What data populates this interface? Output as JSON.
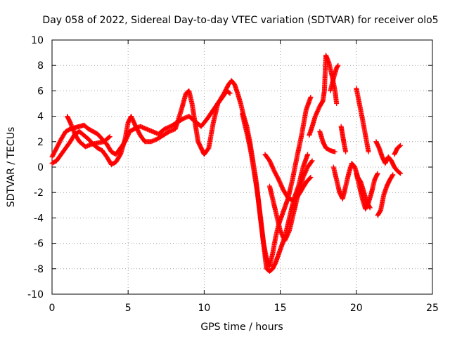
{
  "chart_data": {
    "type": "scatter",
    "title": "Day 058 of 2022, Sidereal Day-to-day VTEC variation (SDTVAR) for receiver olo5",
    "xlabel": "GPS time / hours",
    "ylabel": "SDTVAR / TECUs",
    "xlim": [
      0,
      25
    ],
    "ylim": [
      -10,
      10
    ],
    "xticks": [
      "0",
      "5",
      "10",
      "15",
      "20",
      "25"
    ],
    "yticks": [
      "-10",
      "-8",
      "-6",
      "-4",
      "-2",
      "0",
      "2",
      "4",
      "6",
      "8",
      "10"
    ],
    "xtick_values": [
      0,
      5,
      10,
      15,
      20,
      25
    ],
    "ytick_values": [
      -10,
      -8,
      -6,
      -4,
      -2,
      0,
      2,
      4,
      6,
      8,
      10
    ],
    "grid": true,
    "marker": "plus",
    "color": "#ff0000",
    "series": [
      {
        "points": [
          [
            0.0,
            0.8
          ],
          [
            0.3,
            1.5
          ],
          [
            0.6,
            2.2
          ],
          [
            0.9,
            2.8
          ],
          [
            1.2,
            3.0
          ],
          [
            1.5,
            3.1
          ],
          [
            1.8,
            3.2
          ],
          [
            2.1,
            3.3
          ],
          [
            2.4,
            3.0
          ],
          [
            2.7,
            2.8
          ],
          [
            3.0,
            2.6
          ],
          [
            3.3,
            2.2
          ],
          [
            3.6,
            1.8
          ],
          [
            3.9,
            1.2
          ],
          [
            4.2,
            1.0
          ],
          [
            4.5,
            1.5
          ],
          [
            4.8,
            2.0
          ],
          [
            5.1,
            2.8
          ],
          [
            5.4,
            3.0
          ],
          [
            5.8,
            3.2
          ],
          [
            6.2,
            3.0
          ],
          [
            6.6,
            2.8
          ],
          [
            7.0,
            2.6
          ],
          [
            7.4,
            3.0
          ],
          [
            7.8,
            3.2
          ],
          [
            8.2,
            3.5
          ],
          [
            8.6,
            3.8
          ],
          [
            9.0,
            4.0
          ],
          [
            9.4,
            3.6
          ],
          [
            9.8,
            3.2
          ],
          [
            10.2,
            3.8
          ],
          [
            10.6,
            4.5
          ],
          [
            11.0,
            5.2
          ],
          [
            11.3,
            5.8
          ],
          [
            11.6,
            6.5
          ],
          [
            11.8,
            6.8
          ],
          [
            12.0,
            6.5
          ],
          [
            12.2,
            5.8
          ],
          [
            12.4,
            5.0
          ],
          [
            12.6,
            4.0
          ],
          [
            12.8,
            3.2
          ],
          [
            13.0,
            2.0
          ],
          [
            13.2,
            0.5
          ],
          [
            13.4,
            -1.0
          ],
          [
            13.6,
            -3.0
          ],
          [
            13.8,
            -5.0
          ],
          [
            14.0,
            -7.0
          ],
          [
            14.1,
            -8.0
          ],
          [
            14.3,
            -8.2
          ],
          [
            14.5,
            -8.0
          ],
          [
            14.7,
            -7.5
          ],
          [
            15.0,
            -6.5
          ],
          [
            15.3,
            -5.5
          ],
          [
            15.6,
            -4.0
          ],
          [
            15.9,
            -2.5
          ],
          [
            16.2,
            -1.5
          ],
          [
            16.5,
            0.0
          ],
          [
            16.8,
            1.0
          ]
        ]
      },
      {
        "points": [
          [
            0.0,
            0.3
          ],
          [
            0.3,
            0.5
          ],
          [
            0.6,
            1.0
          ],
          [
            0.9,
            1.5
          ],
          [
            1.2,
            2.0
          ],
          [
            1.5,
            2.6
          ],
          [
            1.8,
            2.8
          ],
          [
            2.1,
            2.5
          ],
          [
            2.4,
            2.2
          ],
          [
            2.7,
            1.8
          ],
          [
            3.0,
            1.5
          ],
          [
            3.3,
            1.3
          ],
          [
            3.6,
            0.8
          ],
          [
            3.9,
            0.2
          ],
          [
            4.2,
            0.4
          ],
          [
            4.5,
            1.0
          ],
          [
            4.8,
            2.2
          ],
          [
            5.0,
            3.5
          ],
          [
            5.2,
            4.0
          ],
          [
            5.5,
            3.2
          ],
          [
            5.8,
            2.5
          ],
          [
            6.1,
            2.0
          ],
          [
            6.5,
            2.0
          ],
          [
            6.9,
            2.2
          ],
          [
            7.3,
            2.5
          ],
          [
            7.7,
            2.8
          ],
          [
            8.1,
            3.0
          ],
          [
            8.5,
            4.5
          ],
          [
            8.8,
            5.8
          ],
          [
            9.0,
            6.0
          ],
          [
            9.2,
            5.0
          ],
          [
            9.4,
            3.5
          ],
          [
            9.6,
            2.0
          ],
          [
            9.8,
            1.5
          ],
          [
            10.0,
            1.0
          ],
          [
            10.3,
            1.5
          ],
          [
            10.6,
            3.5
          ],
          [
            10.9,
            5.0
          ],
          [
            11.2,
            5.5
          ],
          [
            11.5,
            6.0
          ],
          [
            11.7,
            5.8
          ]
        ]
      },
      {
        "points": [
          [
            1.0,
            4.0
          ],
          [
            1.2,
            3.5
          ],
          [
            1.5,
            2.6
          ],
          [
            1.8,
            2.0
          ],
          [
            2.2,
            1.6
          ],
          [
            2.6,
            1.8
          ],
          [
            3.0,
            1.9
          ],
          [
            3.4,
            2.0
          ],
          [
            3.8,
            2.4
          ]
        ]
      },
      {
        "points": [
          [
            12.5,
            4.2
          ],
          [
            12.7,
            3.2
          ],
          [
            12.9,
            2.2
          ],
          [
            13.1,
            1.0
          ],
          [
            13.3,
            -0.5
          ],
          [
            13.5,
            -2.0
          ],
          [
            13.7,
            -4.0
          ],
          [
            13.9,
            -6.0
          ],
          [
            14.1,
            -7.2
          ],
          [
            14.3,
            -7.8
          ],
          [
            14.5,
            -6.8
          ],
          [
            14.7,
            -5.5
          ],
          [
            14.9,
            -4.5
          ],
          [
            15.2,
            -3.5
          ],
          [
            15.5,
            -2.5
          ],
          [
            15.8,
            -1.0
          ],
          [
            16.1,
            0.8
          ],
          [
            16.4,
            2.5
          ],
          [
            16.7,
            4.5
          ],
          [
            17.0,
            5.5
          ]
        ]
      },
      {
        "points": [
          [
            14.0,
            1.0
          ],
          [
            14.3,
            0.5
          ],
          [
            14.6,
            -0.3
          ],
          [
            14.9,
            -1.0
          ],
          [
            15.2,
            -1.8
          ],
          [
            15.5,
            -2.4
          ],
          [
            15.8,
            -2.6
          ],
          [
            16.1,
            -2.4
          ],
          [
            16.4,
            -1.8
          ],
          [
            16.7,
            -1.2
          ],
          [
            17.0,
            -0.8
          ]
        ]
      },
      {
        "points": [
          [
            14.3,
            -1.5
          ],
          [
            14.5,
            -2.5
          ],
          [
            14.7,
            -3.5
          ],
          [
            15.0,
            -5.0
          ],
          [
            15.3,
            -5.8
          ],
          [
            15.6,
            -5.0
          ],
          [
            15.9,
            -3.5
          ],
          [
            16.2,
            -2.0
          ],
          [
            16.5,
            -0.8
          ],
          [
            16.8,
            0.0
          ],
          [
            17.1,
            0.5
          ]
        ]
      },
      {
        "points": [
          [
            16.9,
            2.5
          ],
          [
            17.1,
            3.2
          ],
          [
            17.3,
            4.0
          ],
          [
            17.6,
            4.8
          ],
          [
            17.8,
            5.2
          ],
          [
            17.9,
            6.0
          ],
          [
            18.0,
            8.8
          ],
          [
            18.2,
            8.2
          ],
          [
            18.4,
            7.2
          ],
          [
            18.6,
            6.0
          ],
          [
            18.7,
            5.0
          ]
        ]
      },
      {
        "points": [
          [
            18.3,
            6.0
          ],
          [
            18.5,
            7.0
          ],
          [
            18.7,
            7.8
          ],
          [
            18.8,
            8.0
          ]
        ]
      },
      {
        "points": [
          [
            17.6,
            2.8
          ],
          [
            17.8,
            2.0
          ],
          [
            18.0,
            1.5
          ],
          [
            18.3,
            1.3
          ],
          [
            18.6,
            1.2
          ]
        ]
      },
      {
        "points": [
          [
            18.5,
            0.0
          ],
          [
            18.7,
            -1.0
          ],
          [
            18.9,
            -2.0
          ],
          [
            19.1,
            -2.5
          ],
          [
            19.3,
            -1.5
          ],
          [
            19.5,
            -0.5
          ],
          [
            19.7,
            0.3
          ],
          [
            19.9,
            0.0
          ],
          [
            20.1,
            -0.8
          ],
          [
            20.3,
            -1.2
          ],
          [
            20.5,
            -2.0
          ],
          [
            20.7,
            -2.8
          ],
          [
            20.9,
            -3.2
          ]
        ]
      },
      {
        "points": [
          [
            19.0,
            3.2
          ],
          [
            19.1,
            2.5
          ],
          [
            19.2,
            1.8
          ],
          [
            19.3,
            1.2
          ]
        ]
      },
      {
        "points": [
          [
            20.0,
            6.2
          ],
          [
            20.2,
            5.0
          ],
          [
            20.4,
            3.8
          ],
          [
            20.6,
            2.5
          ],
          [
            20.8,
            1.2
          ]
        ]
      },
      {
        "points": [
          [
            20.0,
            -0.5
          ],
          [
            20.2,
            -1.5
          ],
          [
            20.4,
            -2.5
          ],
          [
            20.6,
            -3.3
          ],
          [
            20.8,
            -2.8
          ],
          [
            21.0,
            -2.0
          ],
          [
            21.2,
            -1.0
          ],
          [
            21.4,
            -0.5
          ]
        ]
      },
      {
        "points": [
          [
            21.3,
            2.0
          ],
          [
            21.5,
            1.5
          ],
          [
            21.7,
            0.8
          ],
          [
            21.9,
            0.3
          ],
          [
            22.1,
            0.8
          ],
          [
            22.3,
            0.5
          ],
          [
            22.5,
            0.0
          ],
          [
            22.7,
            -0.3
          ],
          [
            22.9,
            -0.5
          ]
        ]
      },
      {
        "points": [
          [
            21.4,
            -3.8
          ],
          [
            21.6,
            -3.4
          ],
          [
            21.8,
            -2.2
          ],
          [
            22.0,
            -1.5
          ],
          [
            22.2,
            -1.0
          ],
          [
            22.4,
            -0.6
          ]
        ]
      },
      {
        "points": [
          [
            22.5,
            1.0
          ],
          [
            22.7,
            1.5
          ],
          [
            22.9,
            1.7
          ]
        ]
      }
    ]
  }
}
